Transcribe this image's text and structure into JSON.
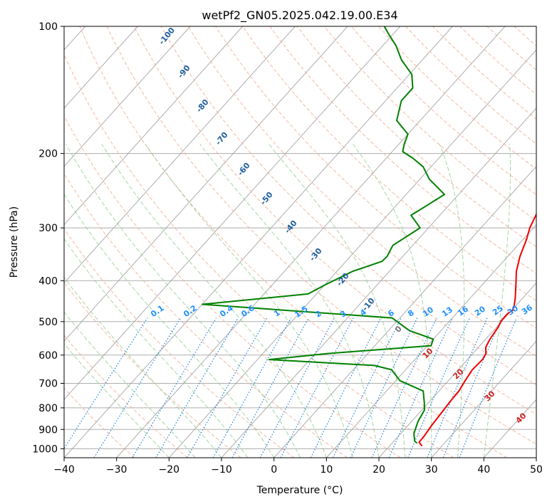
{
  "chart_data": {
    "type": "line",
    "chart_kind": "skew-t log-p",
    "title": "wetPf2_GN05.2025.042.19.00.E34",
    "xlabel": "Temperature (°C)",
    "ylabel": "Pressure (hPa)",
    "xlim": [
      -40,
      50
    ],
    "ylim": [
      1050,
      100
    ],
    "y_scale": "log",
    "grid": true,
    "x_ticks": [
      -40,
      -30,
      -20,
      -10,
      0,
      10,
      20,
      30,
      40,
      50
    ],
    "y_ticks": [
      100,
      200,
      300,
      400,
      500,
      600,
      700,
      800,
      900,
      1000
    ],
    "colors": {
      "temperature": "#ee0000",
      "dewpoint": "#008000",
      "isotherm": "#999999",
      "dry_adiabat": "#f4a58a",
      "moist_adiabat": "#8fcc8f",
      "mixing_ratio": "#1e7fe0",
      "dry_adiabat_labels": "#1f5f9f",
      "mixing_ratio_labels": "#1e90ff",
      "moist_labels": "#cc2222",
      "zero_label": "#777777"
    },
    "series": [
      {
        "key": "temperature",
        "points": [
          [
            26.2,
            985
          ],
          [
            25.0,
            965
          ],
          [
            24.9,
            930
          ],
          [
            24.5,
            880
          ],
          [
            24.2,
            820
          ],
          [
            23.9,
            770
          ],
          [
            23.8,
            730
          ],
          [
            23.2,
            690
          ],
          [
            22.7,
            650
          ],
          [
            22.9,
            615
          ],
          [
            22.5,
            595
          ],
          [
            21.4,
            575
          ],
          [
            20.8,
            550
          ],
          [
            20.3,
            515
          ],
          [
            19.8,
            495
          ],
          [
            19.8,
            478
          ],
          [
            20.2,
            470
          ],
          [
            19.6,
            457
          ],
          [
            18.6,
            440
          ],
          [
            16.5,
            410
          ],
          [
            14.2,
            380
          ],
          [
            12.3,
            350
          ],
          [
            10.7,
            320
          ],
          [
            9.3,
            300
          ],
          [
            8.3,
            280
          ],
          [
            6.4,
            250
          ],
          [
            4.1,
            220
          ],
          [
            2.1,
            200
          ],
          [
            -1.6,
            175
          ],
          [
            -3.9,
            160
          ],
          [
            -6.7,
            145
          ],
          [
            -10.0,
            130
          ],
          [
            -13.3,
            120
          ],
          [
            -17.3,
            110
          ],
          [
            -20.2,
            102
          ]
        ]
      },
      {
        "key": "dewpoint",
        "points": [
          [
            24.8,
            970
          ],
          [
            24.0,
            960
          ],
          [
            22.5,
            920
          ],
          [
            21.2,
            860
          ],
          [
            20.5,
            810
          ],
          [
            19.3,
            780
          ],
          [
            17.0,
            730
          ],
          [
            10.8,
            690
          ],
          [
            7.3,
            650
          ],
          [
            3.3,
            635
          ],
          [
            -17.8,
            615
          ],
          [
            -7.6,
            595
          ],
          [
            10.7,
            570
          ],
          [
            10.0,
            550
          ],
          [
            4.0,
            525
          ],
          [
            -1.5,
            490
          ],
          [
            -40.0,
            455
          ],
          [
            -21.6,
            430
          ],
          [
            -20.0,
            410
          ],
          [
            -17.0,
            380
          ],
          [
            -13.1,
            360
          ],
          [
            -13.0,
            350
          ],
          [
            -13.8,
            330
          ],
          [
            -11.6,
            300
          ],
          [
            -15.5,
            280
          ],
          [
            -14.1,
            265
          ],
          [
            -12.7,
            250
          ],
          [
            -18.2,
            230
          ],
          [
            -21.5,
            215
          ],
          [
            -25.0,
            205
          ],
          [
            -28.0,
            198
          ],
          [
            -29.0,
            190
          ],
          [
            -30.0,
            180
          ],
          [
            -34.5,
            167
          ],
          [
            -37.0,
            150
          ],
          [
            -37.0,
            140
          ],
          [
            -39.5,
            130
          ],
          [
            -44.0,
            120
          ],
          [
            -47.5,
            111
          ],
          [
            -50.5,
            105
          ],
          [
            -53.0,
            100
          ]
        ]
      }
    ],
    "dry_adiabat_labels": [
      "-100",
      "-90",
      "-80",
      "-70",
      "-60",
      "-50",
      "-40",
      "-30",
      "-20",
      "-10"
    ],
    "mixing_ratio_labels": [
      "0.1",
      "0.2",
      "0.4",
      "0.6",
      "1",
      "1.5",
      "2",
      "3",
      "4",
      "6",
      "8",
      "10",
      "13",
      "16",
      "20",
      "25",
      "30",
      "36"
    ],
    "moist_adiabat_labels": [
      "0",
      "10",
      "20",
      "30",
      "40"
    ]
  }
}
